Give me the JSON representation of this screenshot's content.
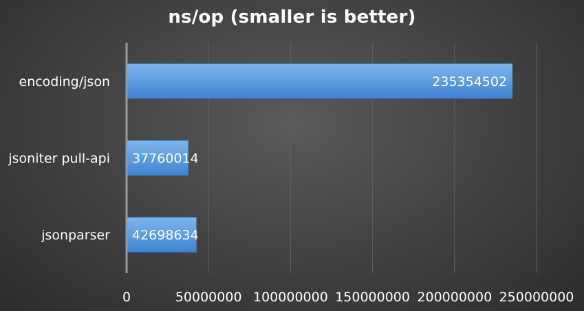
{
  "chart_data": {
    "type": "bar",
    "orientation": "horizontal",
    "title": "ns/op (smaller is better)",
    "categories": [
      "encoding/json",
      "jsoniter pull-api",
      "jsonparser"
    ],
    "values": [
      235354502,
      37760014,
      42698634
    ],
    "data_labels": [
      "235354502",
      "37760014",
      "42698634"
    ],
    "xlim": [
      0,
      250000000
    ],
    "x_ticks": [
      0,
      50000000,
      100000000,
      150000000,
      200000000,
      250000000
    ],
    "x_tick_labels": [
      "0",
      "50000000",
      "100000000",
      "150000000",
      "200000000",
      "250000000"
    ],
    "xlabel": "",
    "ylabel": "",
    "grid": true,
    "legend": "none",
    "colors": {
      "bar_fill_top": "#7fb6ec",
      "bar_fill_bottom": "#3f82cf",
      "bar_edge": "#2b69b3",
      "gridline": "#5f5f5f",
      "axis_line": "#9a9a9a",
      "text": "#ffffff"
    }
  }
}
